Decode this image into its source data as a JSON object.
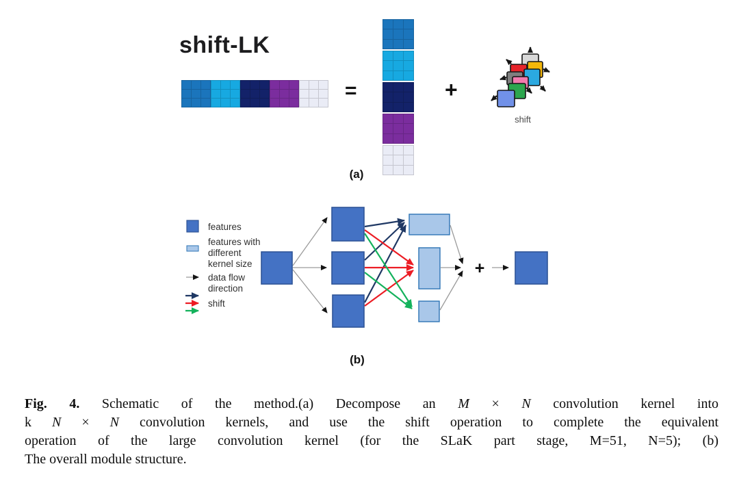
{
  "palette": {
    "feature_blue": "#4472C4",
    "feature_border": "#2F5597",
    "light_blue": "#A9C7E9",
    "light_border": "#2E74B5",
    "arrow_gray": "#9B9B9B",
    "arrow_black": "#151515",
    "shift_navy": "#1F3864",
    "shift_red": "#EC1C24",
    "shift_green": "#14B25C",
    "sq_gray_light": "#D8D8D8",
    "sq_yellow": "#F4B70A",
    "sq_red": "#E6242B",
    "sq_cyan": "#2BA9E0",
    "sq_gray_dark": "#7F7F7F",
    "sq_pink": "#F27BAE",
    "sq_green": "#2CA64E",
    "sq_cornflower": "#7191E8"
  },
  "figure_a": {
    "title": "shift-LK",
    "equals_sign": "=",
    "plus_sign": "+",
    "shift_label": "shift",
    "panel_label": "(a)",
    "kernels": [
      {
        "name": "blue",
        "hex": "#1B75BC"
      },
      {
        "name": "cyan",
        "hex": "#17A9E1"
      },
      {
        "name": "navy",
        "hex": "#132269"
      },
      {
        "name": "purple",
        "hex": "#7B2D9E"
      },
      {
        "name": "light",
        "hex": "#EAECF6"
      }
    ]
  },
  "figure_b": {
    "panel_label": "(b)",
    "plus_sign": "+",
    "legend": {
      "features": "features",
      "features_diff": [
        "features with",
        "different",
        "kernel size"
      ],
      "data_flow": [
        "data flow",
        "direction"
      ],
      "shift": "shift"
    }
  },
  "caption": {
    "lines": [
      [
        {
          "t": "Fig. 4.",
          "b": true
        },
        {
          "t": " Schematic of the method.(a) Decompose an "
        },
        {
          "t": "M",
          "i": true
        },
        {
          "t": " × "
        },
        {
          "t": "N",
          "i": true
        },
        {
          "t": " convolution kernel into"
        }
      ],
      [
        {
          "t": "k "
        },
        {
          "t": "N",
          "i": true
        },
        {
          "t": " × "
        },
        {
          "t": "N",
          "i": true
        },
        {
          "t": " convolution kernels, and use the shift operation to complete the equivalent"
        }
      ],
      [
        {
          "t": "operation of the large convolution kernel (for the SLaK part stage, M=51, N=5); (b)"
        }
      ],
      [
        {
          "t": "The overall module structure."
        }
      ]
    ]
  }
}
